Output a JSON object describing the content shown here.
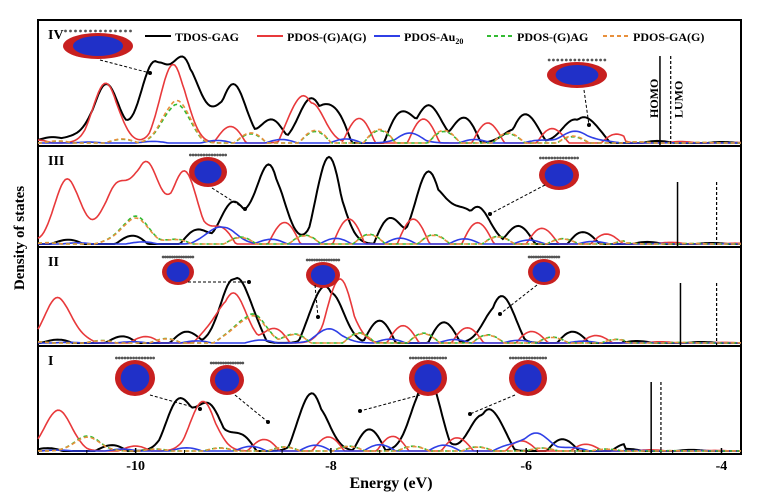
{
  "chart_data": {
    "type": "line",
    "ylabel": "Density of states",
    "xlabel": "Energy (eV)",
    "xlim": [
      -11.0,
      -3.8
    ],
    "x_ticks": [
      "-10",
      "-8",
      "-6",
      "-4"
    ],
    "x_tick_values": [
      -10,
      -8,
      -6,
      -4
    ],
    "legend_position": "top",
    "series_styles": [
      {
        "name": "TDOS-GAG",
        "color": "#000000",
        "dash": "solid"
      },
      {
        "name": "PDOS-(G)A(G)",
        "color": "#e8393b",
        "dash": "solid"
      },
      {
        "name": "PDOS-Au",
        "subscript": "20",
        "color": "#2f3fe6",
        "dash": "solid"
      },
      {
        "name": "PDOS-(G)AG",
        "color": "#33bb33",
        "dash": "dashed"
      },
      {
        "name": "PDOS-GA(G)",
        "color": "#e8903c",
        "dash": "dashed"
      }
    ],
    "panels": [
      {
        "label": "IV",
        "homo_label": "HOMO",
        "lumo_label": "LUMO",
        "homo": -4.63,
        "lumo": -4.52,
        "peaks": [
          {
            "series": "TDOS-GAG",
            "x": -10.85,
            "y": 0.05
          },
          {
            "series": "TDOS-GAG",
            "x": -10.3,
            "y": 0.5
          },
          {
            "series": "TDOS-GAG",
            "x": -9.8,
            "y": 0.62
          },
          {
            "series": "TDOS-GAG",
            "x": -9.5,
            "y": 0.68
          },
          {
            "series": "TDOS-GAG",
            "x": -9.0,
            "y": 0.5
          },
          {
            "series": "TDOS-GAG",
            "x": -8.2,
            "y": 0.38
          },
          {
            "series": "TDOS-GAG",
            "x": -7.0,
            "y": 0.32
          },
          {
            "series": "TDOS-GAG",
            "x": -6.1,
            "y": 0.12
          },
          {
            "series": "TDOS-GAG",
            "x": -5.5,
            "y": 0.2
          },
          {
            "series": "PDOS-(G)A(G)",
            "x": -10.3,
            "y": 0.46
          },
          {
            "series": "PDOS-(G)A(G)",
            "x": -9.6,
            "y": 0.6
          },
          {
            "series": "PDOS-(G)A(G)",
            "x": -8.2,
            "y": 0.34
          },
          {
            "series": "PDOS-Au",
            "x": -7.2,
            "y": 0.05
          },
          {
            "series": "PDOS-Au",
            "x": -5.5,
            "y": 0.1
          },
          {
            "series": "PDOS-(G)AG",
            "x": -9.6,
            "y": 0.3
          },
          {
            "series": "PDOS-GA(G)",
            "x": -9.6,
            "y": 0.33
          }
        ]
      },
      {
        "label": "III",
        "homo": -4.45,
        "lumo": -4.05,
        "peaks": [
          {
            "series": "TDOS-GAG",
            "x": -9.0,
            "y": 0.45
          },
          {
            "series": "TDOS-GAG",
            "x": -8.6,
            "y": 0.72
          },
          {
            "series": "TDOS-GAG",
            "x": -8.0,
            "y": 0.7
          },
          {
            "series": "TDOS-GAG",
            "x": -7.0,
            "y": 0.78
          },
          {
            "series": "TDOS-GAG",
            "x": -6.5,
            "y": 0.4
          },
          {
            "series": "PDOS-(G)A(G)",
            "x": -10.7,
            "y": 0.7
          },
          {
            "series": "PDOS-(G)A(G)",
            "x": -10.2,
            "y": 0.6
          },
          {
            "series": "PDOS-(G)A(G)",
            "x": -9.9,
            "y": 0.78
          },
          {
            "series": "PDOS-(G)A(G)",
            "x": -9.5,
            "y": 0.78
          },
          {
            "series": "PDOS-Au",
            "x": -9.1,
            "y": 0.18
          },
          {
            "series": "PDOS-(G)AG",
            "x": -10.0,
            "y": 0.3
          },
          {
            "series": "PDOS-GA(G)",
            "x": -10.0,
            "y": 0.28
          }
        ]
      },
      {
        "label": "II",
        "homo": -4.42,
        "lumo": -4.05,
        "peaks": [
          {
            "series": "TDOS-GAG",
            "x": -9.0,
            "y": 0.7
          },
          {
            "series": "TDOS-GAG",
            "x": -8.0,
            "y": 0.55
          },
          {
            "series": "TDOS-GAG",
            "x": -6.3,
            "y": 0.4
          },
          {
            "series": "PDOS-(G)A(G)",
            "x": -10.8,
            "y": 0.5
          },
          {
            "series": "PDOS-(G)A(G)",
            "x": -9.0,
            "y": 0.55
          },
          {
            "series": "PDOS-(G)A(G)",
            "x": -7.9,
            "y": 0.52
          },
          {
            "series": "PDOS-Au",
            "x": -8.0,
            "y": 0.12
          },
          {
            "series": "PDOS-(G)AG",
            "x": -8.8,
            "y": 0.32
          },
          {
            "series": "PDOS-GA(G)",
            "x": -8.8,
            "y": 0.3
          }
        ]
      },
      {
        "label": "I",
        "homo": -4.72,
        "lumo": -4.62,
        "peaks": [
          {
            "series": "TDOS-GAG",
            "x": -9.55,
            "y": 0.4
          },
          {
            "series": "TDOS-GAG",
            "x": -9.25,
            "y": 0.45
          },
          {
            "series": "TDOS-GAG",
            "x": -8.15,
            "y": 0.45
          },
          {
            "series": "TDOS-GAG",
            "x": -7.05,
            "y": 0.62
          },
          {
            "series": "TDOS-GAG",
            "x": -6.45,
            "y": 0.36
          },
          {
            "series": "PDOS-(G)A(G)",
            "x": -10.8,
            "y": 0.4
          },
          {
            "series": "PDOS-(G)A(G)",
            "x": -9.3,
            "y": 0.42
          },
          {
            "series": "PDOS-Au",
            "x": -5.9,
            "y": 0.18
          },
          {
            "series": "PDOS-(G)AG",
            "x": -10.5,
            "y": 0.14
          },
          {
            "series": "PDOS-GA(G)",
            "x": -10.5,
            "y": 0.13
          }
        ]
      }
    ]
  }
}
